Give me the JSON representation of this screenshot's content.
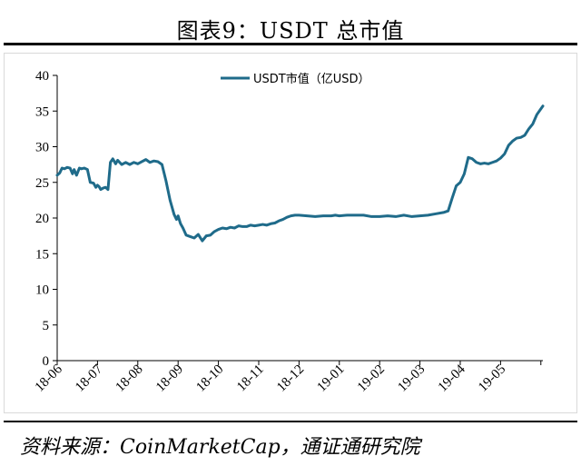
{
  "header": {
    "title": "图表9：USDT 总市值"
  },
  "source": {
    "text": "资料来源：CoinMarketCap，通证通研究院"
  },
  "colors": {
    "line": "#1f6b8a",
    "axis": "#000000"
  },
  "chart_data": {
    "type": "line",
    "title": "图表9：USDT 总市值",
    "xlabel": "",
    "ylabel": "",
    "ylim": [
      0,
      40
    ],
    "yticks": [
      0,
      5,
      10,
      15,
      20,
      25,
      30,
      35,
      40
    ],
    "categories": [
      "18-06",
      "18-07",
      "18-08",
      "18-09",
      "18-10",
      "18-11",
      "18-12",
      "19-01",
      "19-02",
      "19-03",
      "19-04",
      "19-05"
    ],
    "grid": false,
    "legend": "top-center",
    "series": [
      {
        "name": "USDT市值（亿USD）",
        "color": "#1f6b8a",
        "x": [
          0.0,
          0.06,
          0.12,
          0.18,
          0.25,
          0.32,
          0.38,
          0.42,
          0.48,
          0.55,
          0.6,
          0.67,
          0.75,
          0.82,
          0.9,
          0.96,
          1.0,
          1.04,
          1.08,
          1.14,
          1.2,
          1.26,
          1.32,
          1.38,
          1.45,
          1.5,
          1.6,
          1.7,
          1.8,
          1.9,
          2.0,
          2.1,
          2.2,
          2.3,
          2.4,
          2.5,
          2.6,
          2.7,
          2.8,
          2.9,
          2.96,
          3.0,
          3.06,
          3.12,
          3.2,
          3.3,
          3.4,
          3.5,
          3.6,
          3.7,
          3.8,
          3.9,
          4.0,
          4.1,
          4.2,
          4.3,
          4.4,
          4.5,
          4.6,
          4.7,
          4.8,
          4.9,
          5.0,
          5.1,
          5.2,
          5.3,
          5.4,
          5.5,
          5.6,
          5.7,
          5.8,
          5.9,
          6.0,
          6.2,
          6.4,
          6.6,
          6.8,
          6.9,
          7.0,
          7.2,
          7.4,
          7.6,
          7.8,
          8.0,
          8.2,
          8.4,
          8.6,
          8.8,
          9.0,
          9.2,
          9.4,
          9.6,
          9.7,
          9.8,
          9.9,
          10.0,
          10.1,
          10.2,
          10.3,
          10.4,
          10.5,
          10.6,
          10.7,
          10.8,
          10.9,
          11.0,
          11.1,
          11.2,
          11.3,
          11.4,
          11.5,
          11.6,
          11.7,
          11.8,
          11.9,
          12.0,
          12.05
        ],
        "values": [
          26.0,
          26.3,
          27.0,
          26.9,
          27.1,
          27.0,
          26.2,
          26.8,
          26.0,
          27.0,
          26.9,
          27.0,
          26.8,
          25.0,
          24.9,
          24.3,
          24.6,
          24.4,
          24.0,
          24.2,
          24.3,
          24.0,
          27.8,
          28.3,
          27.6,
          28.1,
          27.5,
          27.8,
          27.5,
          27.8,
          27.6,
          27.9,
          28.2,
          27.8,
          28.0,
          27.9,
          27.5,
          25.2,
          22.5,
          20.5,
          19.8,
          20.3,
          19.2,
          18.6,
          17.6,
          17.4,
          17.2,
          17.7,
          16.8,
          17.5,
          17.6,
          18.1,
          18.4,
          18.6,
          18.5,
          18.7,
          18.6,
          18.9,
          18.8,
          18.8,
          19.0,
          18.9,
          19.0,
          19.1,
          19.0,
          19.2,
          19.3,
          19.6,
          19.8,
          20.1,
          20.3,
          20.4,
          20.4,
          20.3,
          20.2,
          20.3,
          20.3,
          20.4,
          20.3,
          20.4,
          20.4,
          20.4,
          20.2,
          20.2,
          20.3,
          20.2,
          20.4,
          20.2,
          20.3,
          20.4,
          20.6,
          20.8,
          21.0,
          22.8,
          24.5,
          25.0,
          26.2,
          28.5,
          28.3,
          27.8,
          27.6,
          27.7,
          27.6,
          27.8,
          28.0,
          28.4,
          29.0,
          30.2,
          30.8,
          31.2,
          31.3,
          31.6,
          32.5,
          33.2,
          34.5,
          35.3,
          35.7
        ]
      }
    ]
  }
}
